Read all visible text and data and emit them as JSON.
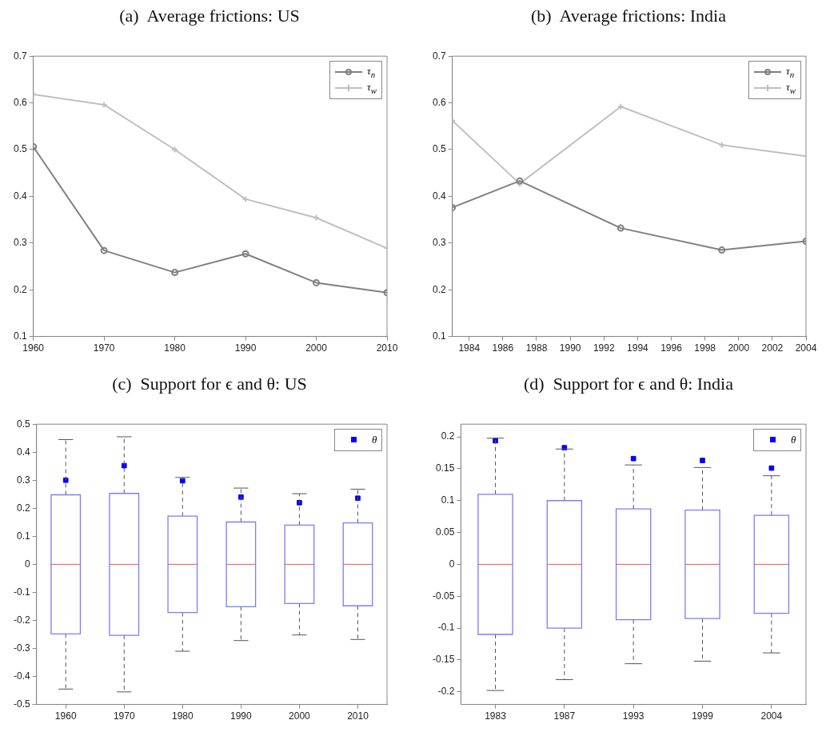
{
  "chart_data": [
    {
      "type": "line",
      "title": "(a)  Average frictions: US",
      "x": [
        1960,
        1970,
        1980,
        1990,
        2000,
        2010
      ],
      "xlim": [
        1960,
        2010
      ],
      "xticks": [
        1960,
        1970,
        1980,
        1990,
        2000,
        2010
      ],
      "ylim": [
        0.1,
        0.7
      ],
      "yticks": [
        0.1,
        0.2,
        0.3,
        0.4,
        0.5,
        0.6,
        0.7
      ],
      "grid": false,
      "legend": "top right",
      "series": [
        {
          "name": "τ$_{n}$",
          "color": "#808080",
          "marker": "circle",
          "values": [
            0.506,
            0.284,
            0.237,
            0.277,
            0.215,
            0.194
          ]
        },
        {
          "name": "τ$_{w}$",
          "color": "#c0c0c0",
          "marker": "cross",
          "values": [
            0.618,
            0.596,
            0.5,
            0.394,
            0.354,
            0.289
          ]
        }
      ]
    },
    {
      "type": "line",
      "title": "(b)  Average frictions: India",
      "x": [
        1983,
        1987,
        1993,
        1999,
        2004
      ],
      "xlim": [
        1983,
        2004
      ],
      "xticks": [
        1984,
        1986,
        1988,
        1990,
        1992,
        1994,
        1996,
        1998,
        2000,
        2002,
        2004
      ],
      "ylim": [
        0.1,
        0.7
      ],
      "yticks": [
        0.1,
        0.2,
        0.3,
        0.4,
        0.5,
        0.6,
        0.7
      ],
      "grid": false,
      "legend": "top right",
      "series": [
        {
          "name": "τ$_{n}$",
          "color": "#808080",
          "marker": "circle",
          "values": [
            0.376,
            0.433,
            0.332,
            0.285,
            0.304
          ]
        },
        {
          "name": "τ$_{w}$",
          "color": "#c0c0c0",
          "marker": "cross",
          "values": [
            0.562,
            0.427,
            0.592,
            0.51,
            0.486
          ]
        }
      ]
    },
    {
      "type": "box",
      "title": "(c)  Support for ϵ and θ: US",
      "categories": [
        "1960",
        "1970",
        "1980",
        "1990",
        "2000",
        "2010"
      ],
      "ylim": [
        -0.5,
        0.5
      ],
      "yticks": [
        -0.5,
        -0.4,
        -0.3,
        -0.2,
        -0.1,
        0,
        0.1,
        0.2,
        0.3,
        0.4,
        0.5
      ],
      "grid": false,
      "legend": "top right",
      "series": [
        {
          "color": "#7b7bff",
          "line_style": "dashed",
          "boxes": [
            {
              "low": -0.445,
              "q1": -0.248,
              "median": 0,
              "q3": 0.248,
              "high": 0.445
            },
            {
              "low": -0.455,
              "q1": -0.253,
              "median": 0,
              "q3": 0.253,
              "high": 0.455
            },
            {
              "low": -0.31,
              "q1": -0.172,
              "median": 0,
              "q3": 0.172,
              "high": 0.31
            },
            {
              "low": -0.272,
              "q1": -0.151,
              "median": 0,
              "q3": 0.151,
              "high": 0.272
            },
            {
              "low": -0.252,
              "q1": -0.14,
              "median": 0,
              "q3": 0.14,
              "high": 0.252
            },
            {
              "low": -0.268,
              "q1": -0.148,
              "median": 0,
              "q3": 0.148,
              "high": 0.268
            }
          ]
        },
        {
          "type": "scatter",
          "name": "θ",
          "color": "#0000ff",
          "marker": "square",
          "values": [
            0.3,
            0.352,
            0.298,
            0.24,
            0.22,
            0.236
          ]
        }
      ]
    },
    {
      "type": "box",
      "title": "(d)  Support for ϵ and θ: India",
      "categories": [
        "1983",
        "1987",
        "1993",
        "1999",
        "2004"
      ],
      "ylim": [
        -0.22,
        0.22
      ],
      "yticks": [
        -0.2,
        -0.15,
        -0.1,
        -0.05,
        0,
        0.05,
        0.1,
        0.15,
        0.2
      ],
      "grid": false,
      "legend": "top right",
      "series": [
        {
          "color": "#7b7bff",
          "line_style": "dashed",
          "boxes": [
            {
              "low": -0.198,
              "q1": -0.11,
              "median": 0,
              "q3": 0.11,
              "high": 0.198
            },
            {
              "low": -0.181,
              "q1": -0.1,
              "median": 0,
              "q3": 0.1,
              "high": 0.181
            },
            {
              "low": -0.156,
              "q1": -0.087,
              "median": 0,
              "q3": 0.087,
              "high": 0.156
            },
            {
              "low": -0.152,
              "q1": -0.085,
              "median": 0,
              "q3": 0.085,
              "high": 0.152
            },
            {
              "low": -0.139,
              "q1": -0.077,
              "median": 0,
              "q3": 0.077,
              "high": 0.139
            }
          ]
        },
        {
          "type": "scatter",
          "name": "θ",
          "color": "#0000ff",
          "marker": "square",
          "values": [
            0.194,
            0.183,
            0.166,
            0.163,
            0.151
          ]
        }
      ]
    }
  ]
}
